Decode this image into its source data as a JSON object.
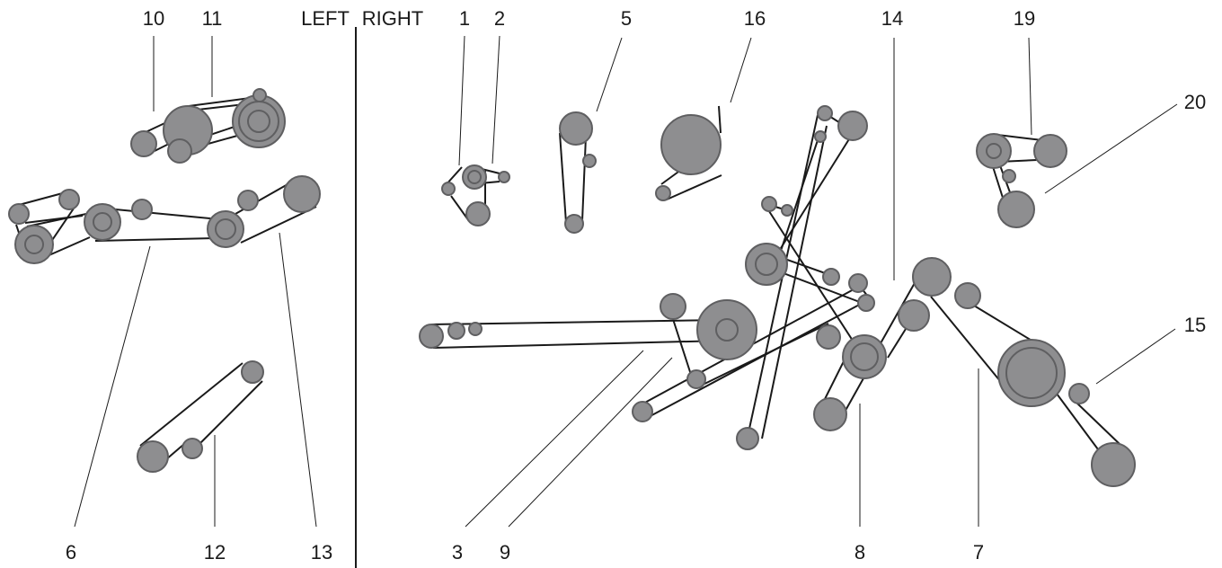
{
  "header": {
    "left_label": "LEFT",
    "right_label": "RIGHT"
  },
  "callouts": {
    "c1": "1",
    "c2": "2",
    "c3": "3",
    "c5": "5",
    "c6": "6",
    "c7": "7",
    "c8": "8",
    "c9": "9",
    "c10": "10",
    "c11": "11",
    "c12": "12",
    "c13": "13",
    "c14": "14",
    "c15": "15",
    "c16": "16",
    "c19": "19",
    "c20": "20"
  },
  "colors": {
    "pulley_fill": "#8e8e90",
    "pulley_stroke": "#5f5f61",
    "belt": "#1a1a1a",
    "background": "#ffffff"
  }
}
